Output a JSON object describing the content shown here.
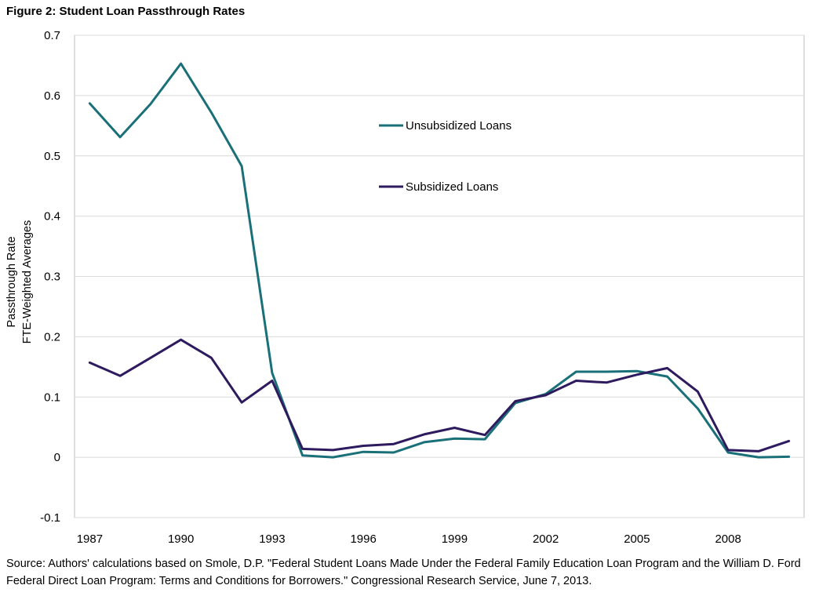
{
  "figure_title": "Figure 2: Student Loan Passthrough Rates",
  "source_note": "Source: Authors' calculations based on Smole, D.P. \"Federal Student Loans Made Under the Federal Family Education Loan Program and the William D. Ford Federal Direct Loan Program: Terms and Conditions for Borrowers.\" Congressional Research Service, June 7, 2013.",
  "chart_data": {
    "type": "line",
    "title": "Figure 2: Student Loan Passthrough Rates",
    "xlabel": "",
    "ylabel_lines": [
      "Passthrough Rate",
      "FTE-Weighted Averages"
    ],
    "x": [
      1987,
      1988,
      1989,
      1990,
      1991,
      1992,
      1993,
      1994,
      1995,
      1996,
      1997,
      1998,
      1999,
      2000,
      2001,
      2002,
      2003,
      2004,
      2005,
      2006,
      2007,
      2008,
      2009,
      2010
    ],
    "xlim": [
      1986.5,
      2010.5
    ],
    "x_tick_labels": [
      "1987",
      "1990",
      "1993",
      "1996",
      "1999",
      "2002",
      "2005",
      "2008"
    ],
    "x_tick_values": [
      1987,
      1990,
      1993,
      1996,
      1999,
      2002,
      2005,
      2008
    ],
    "ylim": [
      -0.1,
      0.7
    ],
    "y_tick_labels": [
      "-0.1",
      "0",
      "0.1",
      "0.2",
      "0.3",
      "0.4",
      "0.5",
      "0.6",
      "0.7"
    ],
    "y_tick_values": [
      -0.1,
      0,
      0.1,
      0.2,
      0.3,
      0.4,
      0.5,
      0.6,
      0.7
    ],
    "grid": true,
    "legend_position": "upper-center",
    "series": [
      {
        "name": "Unsubsidized Loans",
        "color": "#1a7078",
        "values": [
          0.587,
          0.531,
          0.586,
          0.653,
          0.572,
          0.483,
          0.14,
          0.003,
          0.0,
          0.009,
          0.008,
          0.025,
          0.031,
          0.03,
          0.09,
          0.105,
          0.142,
          0.142,
          0.143,
          0.134,
          0.081,
          0.008,
          0.0,
          0.001
        ]
      },
      {
        "name": "Subsidized Loans",
        "color": "#2e1a5e",
        "values": [
          0.157,
          0.135,
          0.165,
          0.195,
          0.165,
          0.091,
          0.127,
          0.014,
          0.012,
          0.019,
          0.022,
          0.038,
          0.049,
          0.037,
          0.093,
          0.103,
          0.127,
          0.124,
          0.137,
          0.148,
          0.109,
          0.012,
          0.01,
          0.027
        ]
      }
    ]
  }
}
